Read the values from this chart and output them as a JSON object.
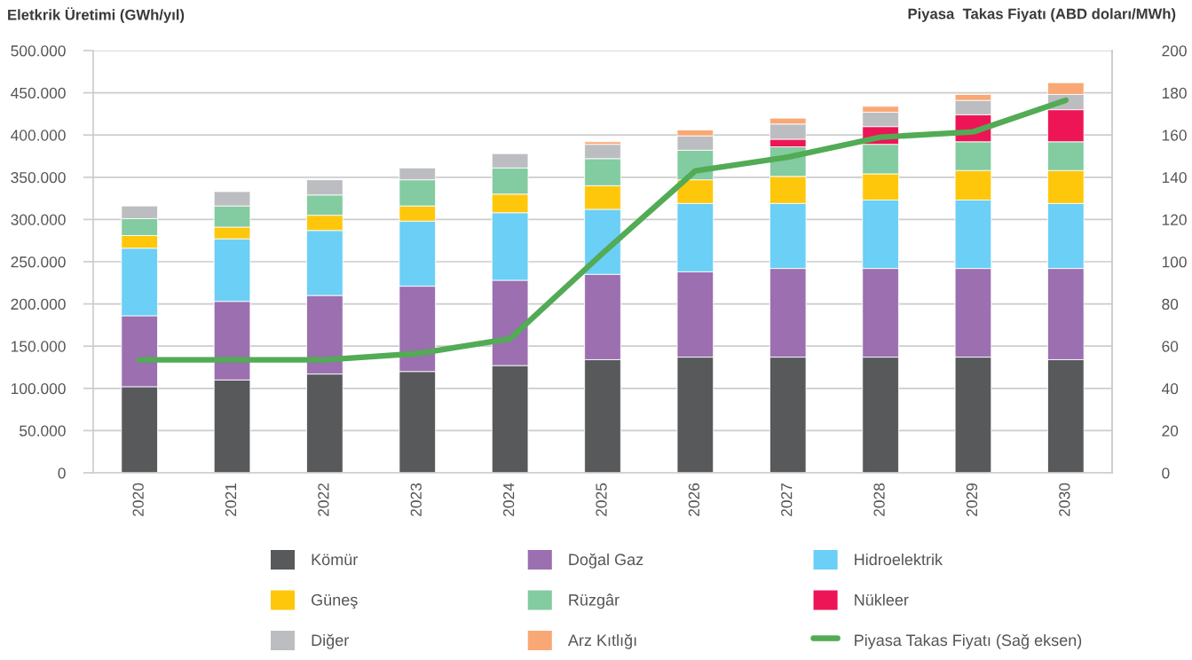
{
  "chart_data": {
    "type": "bar",
    "stacked": true,
    "ylabel": "Eletkrik Üretimi (GWh/yıl)",
    "y2label": "Piyasa  Takas Fiyatı (ABD doları/MWh)",
    "categories": [
      "2020",
      "2021",
      "2022",
      "2023",
      "2024",
      "2025",
      "2026",
      "2027",
      "2028",
      "2029",
      "2030"
    ],
    "series": [
      {
        "name": "Kömür",
        "color": "#58595b",
        "values": [
          102000,
          110000,
          117000,
          120000,
          127000,
          134000,
          137000,
          137000,
          137000,
          137000,
          134000
        ]
      },
      {
        "name": "Doğal Gaz",
        "color": "#9b6fb0",
        "values": [
          84000,
          93000,
          93000,
          101000,
          101000,
          101000,
          101000,
          105000,
          105000,
          105000,
          108000
        ]
      },
      {
        "name": "Hidroelektrik",
        "color": "#6bcff6",
        "values": [
          80000,
          74000,
          77000,
          77000,
          80000,
          77000,
          81000,
          77000,
          81000,
          81000,
          77000
        ]
      },
      {
        "name": "Güneş",
        "color": "#fec70b",
        "values": [
          15000,
          14000,
          18000,
          18000,
          22000,
          28000,
          28000,
          32000,
          31000,
          35000,
          39000
        ]
      },
      {
        "name": "Rüzgâr",
        "color": "#83cba0",
        "values": [
          20000,
          25000,
          24000,
          31000,
          31000,
          32000,
          35000,
          35000,
          35000,
          34000,
          34000
        ]
      },
      {
        "name": "Nükleer",
        "color": "#ed1556",
        "values": [
          null,
          null,
          null,
          null,
          null,
          null,
          null,
          9000,
          21000,
          32000,
          38000
        ]
      },
      {
        "name": "Diğer",
        "color": "#bcbdc0",
        "values": [
          15000,
          17000,
          18000,
          14000,
          17000,
          17000,
          17000,
          18000,
          17000,
          17000,
          18000
        ]
      },
      {
        "name": "Arz Kıtlığı",
        "color": "#f9a875",
        "values": [
          null,
          null,
          null,
          null,
          null,
          3000,
          7000,
          7000,
          7000,
          7000,
          14000
        ]
      },
      {
        "name": "Piyasa Takas Fiyatı (Sağ eksen)",
        "type": "line",
        "axis": "y2",
        "color": "#52ab55",
        "values": [
          53.5,
          53.5,
          53.5,
          56.5,
          63.5,
          104,
          143,
          149.5,
          159,
          161.5,
          176.5
        ]
      }
    ],
    "ylim": [
      0,
      500000
    ],
    "yticks": [
      0,
      {
        "value": 50000,
        "label": "50.000"
      },
      {
        "value": 100000,
        "label": "100.000"
      },
      {
        "value": 150000,
        "label": "150.000"
      },
      {
        "value": 200000,
        "label": "200.000"
      },
      {
        "value": 250000,
        "label": "250.000"
      },
      {
        "value": 300000,
        "label": "300.000"
      },
      {
        "value": 350000,
        "label": "350.000"
      },
      {
        "value": 400000,
        "label": "400.000"
      },
      {
        "value": 450000,
        "label": "450.000"
      },
      {
        "value": 500000,
        "label": "500.000"
      }
    ],
    "y2lim": [
      0,
      200
    ],
    "y2ticks": [
      0,
      20,
      40,
      60,
      80,
      100,
      120,
      140,
      160,
      180,
      200
    ],
    "grid": "y",
    "legend": "bottom"
  }
}
